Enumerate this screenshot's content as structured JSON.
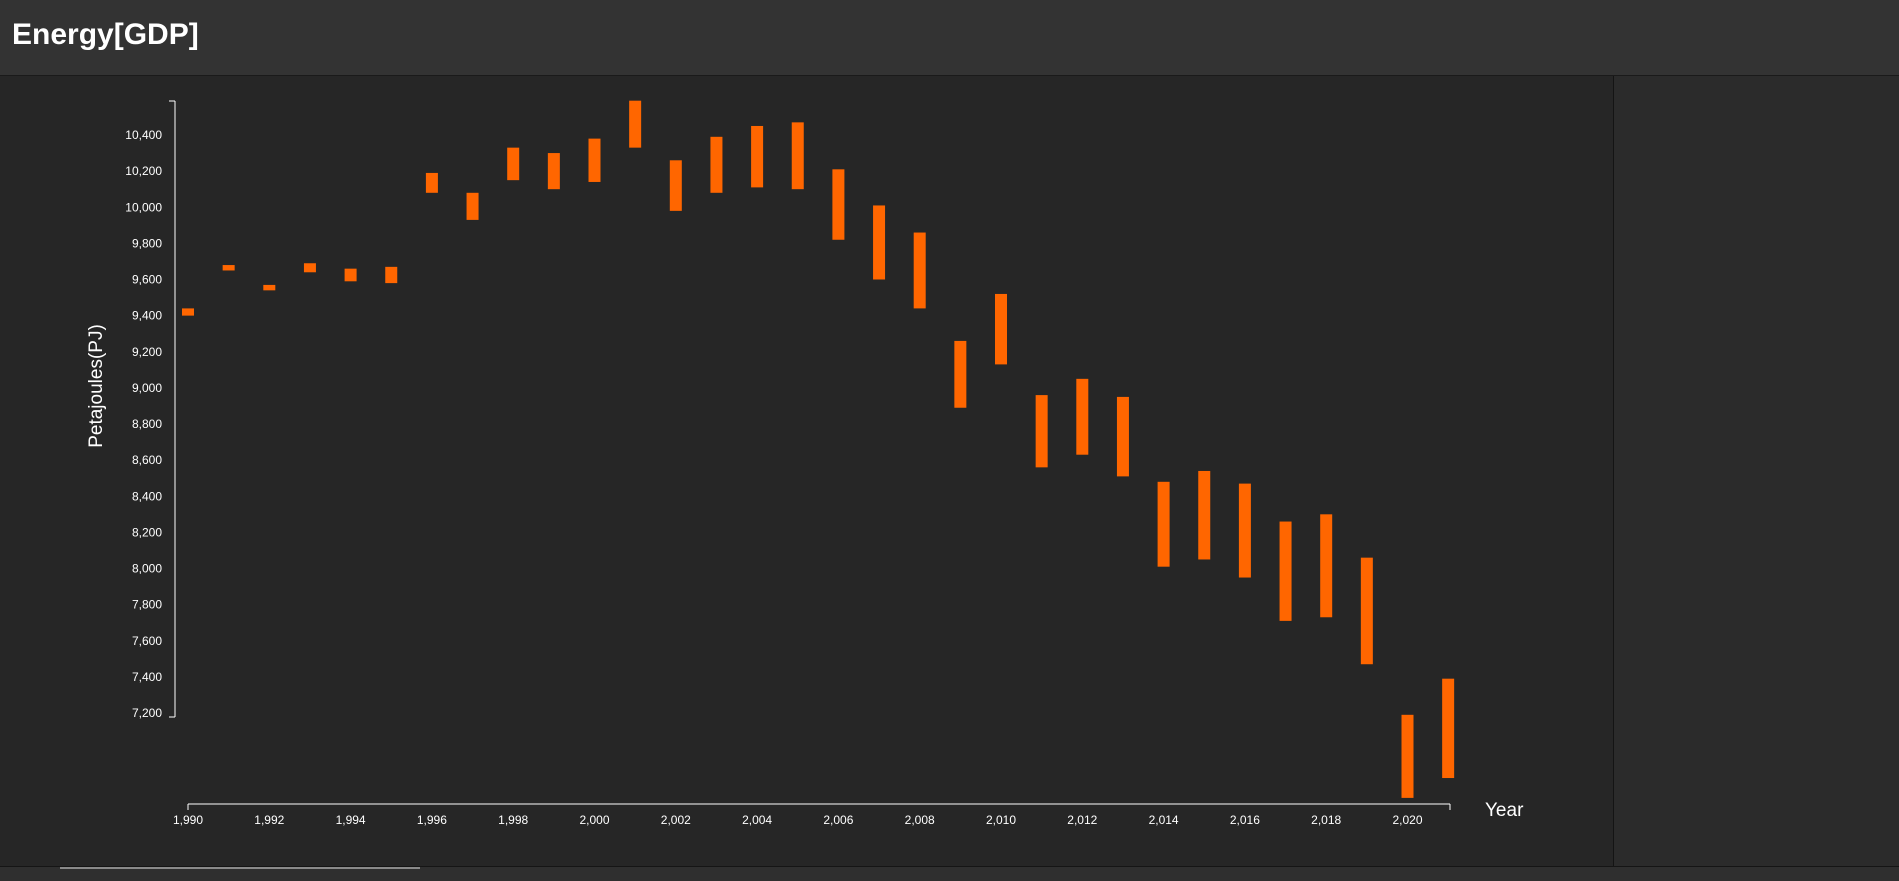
{
  "header": {
    "title": "Energy[GDP]"
  },
  "chart_data": {
    "type": "bar",
    "subtype": "floating-range",
    "xlabel": "Year",
    "ylabel": "Petajoules(PJ)",
    "x_ticks": [
      "1,990",
      "1,992",
      "1,994",
      "1,996",
      "1,998",
      "2,000",
      "2,002",
      "2,004",
      "2,006",
      "2,008",
      "2,010",
      "2,012",
      "2,014",
      "2,016",
      "2,018",
      "2,020"
    ],
    "y_ticks": [
      "10,400",
      "10,200",
      "10,000",
      "9,800",
      "9,600",
      "9,400",
      "9,200",
      "9,000",
      "8,800",
      "8,600",
      "8,400",
      "8,200",
      "8,000",
      "7,800",
      "7,600",
      "7,400",
      "7,200"
    ],
    "ylim": [
      6700,
      10590
    ],
    "xlim": [
      1990,
      2021
    ],
    "color": "#ff6600",
    "bars": [
      {
        "year": 1990,
        "low": 9400,
        "high": 9440
      },
      {
        "year": 1991,
        "low": 9650,
        "high": 9680
      },
      {
        "year": 1992,
        "low": 9540,
        "high": 9570
      },
      {
        "year": 1993,
        "low": 9640,
        "high": 9690
      },
      {
        "year": 1994,
        "low": 9590,
        "high": 9660
      },
      {
        "year": 1995,
        "low": 9580,
        "high": 9670
      },
      {
        "year": 1996,
        "low": 10080,
        "high": 10190
      },
      {
        "year": 1997,
        "low": 9930,
        "high": 10080
      },
      {
        "year": 1998,
        "low": 10150,
        "high": 10330
      },
      {
        "year": 1999,
        "low": 10100,
        "high": 10300
      },
      {
        "year": 2000,
        "low": 10140,
        "high": 10380
      },
      {
        "year": 2001,
        "low": 10330,
        "high": 10590
      },
      {
        "year": 2002,
        "low": 9980,
        "high": 10260
      },
      {
        "year": 2003,
        "low": 10080,
        "high": 10390
      },
      {
        "year": 2004,
        "low": 10110,
        "high": 10450
      },
      {
        "year": 2005,
        "low": 10100,
        "high": 10470
      },
      {
        "year": 2006,
        "low": 9820,
        "high": 10210
      },
      {
        "year": 2007,
        "low": 9600,
        "high": 10010
      },
      {
        "year": 2008,
        "low": 9440,
        "high": 9860
      },
      {
        "year": 2009,
        "low": 8890,
        "high": 9260
      },
      {
        "year": 2010,
        "low": 9130,
        "high": 9520
      },
      {
        "year": 2011,
        "low": 8560,
        "high": 8960
      },
      {
        "year": 2012,
        "low": 8630,
        "high": 9050
      },
      {
        "year": 2013,
        "low": 8510,
        "high": 8950
      },
      {
        "year": 2014,
        "low": 8010,
        "high": 8480
      },
      {
        "year": 2015,
        "low": 8050,
        "high": 8540
      },
      {
        "year": 2016,
        "low": 7950,
        "high": 8470
      },
      {
        "year": 2017,
        "low": 7710,
        "high": 8260
      },
      {
        "year": 2018,
        "low": 7730,
        "high": 8300
      },
      {
        "year": 2019,
        "low": 7470,
        "high": 8060
      },
      {
        "year": 2020,
        "low": 6730,
        "high": 7190
      },
      {
        "year": 2021,
        "low": 6840,
        "high": 7390
      }
    ]
  }
}
